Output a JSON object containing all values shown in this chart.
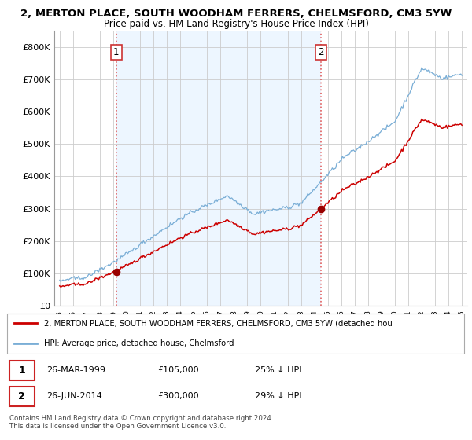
{
  "title1": "2, MERTON PLACE, SOUTH WOODHAM FERRERS, CHELMSFORD, CM3 5YW",
  "title2": "Price paid vs. HM Land Registry's House Price Index (HPI)",
  "ylim": [
    0,
    850000
  ],
  "yticks": [
    0,
    100000,
    200000,
    300000,
    400000,
    500000,
    600000,
    700000,
    800000
  ],
  "ytick_labels": [
    "£0",
    "£100K",
    "£200K",
    "£300K",
    "£400K",
    "£500K",
    "£600K",
    "£700K",
    "£800K"
  ],
  "sale1_year": 1999.23,
  "sale1_price": 105000,
  "sale1_label": "1",
  "sale2_year": 2014.49,
  "sale2_price": 300000,
  "sale2_label": "2",
  "line_color_red": "#cc0000",
  "line_color_blue": "#7aaed6",
  "dot_color_red": "#990000",
  "grid_color": "#cccccc",
  "bg_highlight": "#ddeeff",
  "legend_label_red": "2, MERTON PLACE, SOUTH WOODHAM FERRERS, CHELMSFORD, CM3 5YW (detached hou",
  "legend_label_blue": "HPI: Average price, detached house, Chelmsford",
  "table_row1": [
    "1",
    "26-MAR-1999",
    "£105,000",
    "25% ↓ HPI"
  ],
  "table_row2": [
    "2",
    "26-JUN-2014",
    "£300,000",
    "29% ↓ HPI"
  ],
  "footer": "Contains HM Land Registry data © Crown copyright and database right 2024.\nThis data is licensed under the Open Government Licence v3.0.",
  "xstart": 1995,
  "xend": 2025
}
